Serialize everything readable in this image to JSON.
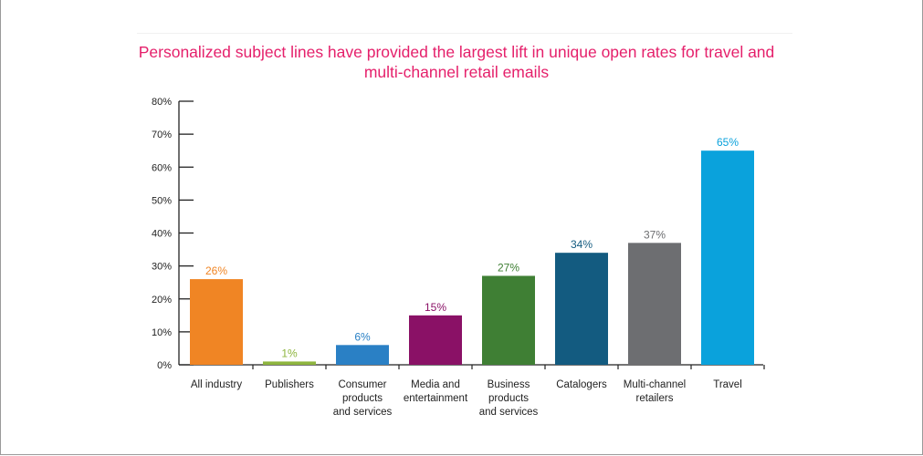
{
  "chart_data": {
    "type": "bar",
    "title": "Personalized subject lines have provided the largest lift in unique open rates for travel and multi-channel retail emails",
    "xlabel": "",
    "ylabel": "",
    "ylim": [
      0,
      80
    ],
    "yticks": [
      "0%",
      "10%",
      "20%",
      "30%",
      "40%",
      "50%",
      "60%",
      "70%",
      "80%"
    ],
    "grid": false,
    "legend": "none",
    "categories": [
      [
        "All industry"
      ],
      [
        "Publishers"
      ],
      [
        "Consumer",
        "products",
        "and services"
      ],
      [
        "Media and",
        "entertainment"
      ],
      [
        "Business",
        "products",
        "and services"
      ],
      [
        "Catalogers"
      ],
      [
        "Multi-channel",
        "retailers"
      ],
      [
        "Travel"
      ]
    ],
    "values": [
      26,
      1,
      6,
      15,
      27,
      34,
      37,
      65
    ],
    "data_labels": [
      "26%",
      "1%",
      "6%",
      "15%",
      "27%",
      "34%",
      "37%",
      "65%"
    ],
    "colors": [
      "#f08524",
      "#8eb53e",
      "#2a80c5",
      "#8a1166",
      "#3f7f34",
      "#135b80",
      "#6d6e71",
      "#0aa2dc"
    ],
    "label_colors": [
      "#f08524",
      "#8eb53e",
      "#2a80c5",
      "#8a1166",
      "#3f7f34",
      "#135b80",
      "#6d6e71",
      "#0aa2dc"
    ]
  }
}
